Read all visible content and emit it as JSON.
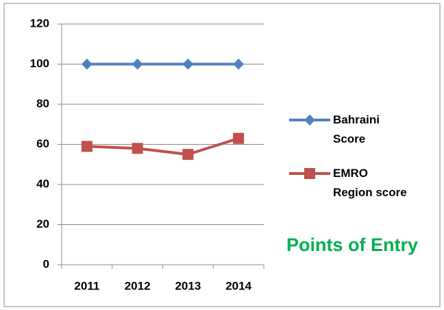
{
  "chart_data": {
    "type": "line",
    "categories": [
      "2011",
      "2012",
      "2013",
      "2014"
    ],
    "series": [
      {
        "name": "Bahraini Score",
        "color": "#4f81bd",
        "marker": "diamond",
        "values": [
          100,
          100,
          100,
          100
        ]
      },
      {
        "name": "EMRO Region score",
        "color": "#c0504d",
        "marker": "square",
        "values": [
          59,
          58,
          55,
          63
        ]
      }
    ],
    "ylim": [
      0,
      120
    ],
    "yticks": [
      0,
      20,
      40,
      60,
      80,
      100,
      120
    ],
    "grid": true,
    "legend": "right",
    "annotation": "Points of Entry",
    "annotation_color": "#00b050"
  }
}
